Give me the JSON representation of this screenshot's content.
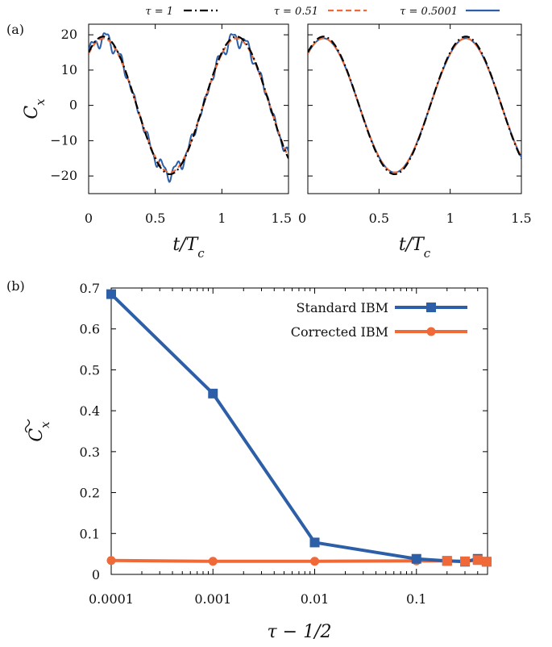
{
  "chart_data": [
    {
      "type": "line",
      "panel_label": "(a)",
      "xlabel": "t/T_c",
      "ylabel": "C_x",
      "xlim": [
        0,
        1.5
      ],
      "ylim": [
        -25,
        23
      ],
      "x_ticks": [
        "0",
        "0.5",
        "1",
        "1.5"
      ],
      "y_ticks": [
        "20",
        "10",
        "0",
        "−10",
        "−20"
      ],
      "legend": {
        "placement": "top-outside",
        "entries": [
          "τ = 1",
          "τ = 0.51",
          "τ = 0.5001"
        ]
      },
      "series": [
        {
          "name": "τ = 1",
          "color": "#000000",
          "style": "dash-dot",
          "left_peak": 19.5,
          "right_peak": 19.5
        },
        {
          "name": "τ = 0.51",
          "color": "#ef6a38",
          "style": "dashed",
          "left_peak": 19.0,
          "right_peak": 19.0
        },
        {
          "name": "τ = 0.5001",
          "color": "#2c5fa8",
          "style": "solid",
          "left_peak": 19.0,
          "left_oscillation": 2.0,
          "right_peak": 19.0
        }
      ],
      "signal": {
        "period": 1.0,
        "peak_x": 0.11,
        "mean": 0
      }
    },
    {
      "type": "line",
      "panel_label": "(b)",
      "xlabel": "τ − 1/2",
      "ylabel": "C̃_x",
      "xscale": "log",
      "xlim": [
        0.0001,
        0.5
      ],
      "ylim": [
        0,
        0.7
      ],
      "x_ticks": [
        "0.0001",
        "0.001",
        "0.01",
        "0.1"
      ],
      "y_ticks": [
        "0.7",
        "0.6",
        "0.5",
        "0.4",
        "0.3",
        "0.2",
        "0.1",
        "0"
      ],
      "legend": {
        "placement": "top-right"
      },
      "series": [
        {
          "name": "Standard IBM",
          "color": "#2c5fa8",
          "marker": "square",
          "x": [
            0.0001,
            0.001,
            0.01,
            0.1,
            0.2,
            0.3,
            0.4,
            0.49
          ],
          "y": [
            0.685,
            0.442,
            0.078,
            0.038,
            0.033,
            0.031,
            0.038,
            0.031
          ]
        },
        {
          "name": "Corrected IBM",
          "color": "#ef6a38",
          "marker": "circle",
          "x": [
            0.0001,
            0.001,
            0.01,
            0.1,
            0.2,
            0.3,
            0.4,
            0.49
          ],
          "y": [
            0.034,
            0.032,
            0.032,
            0.033,
            0.033,
            0.032,
            0.035,
            0.031
          ]
        }
      ]
    }
  ]
}
